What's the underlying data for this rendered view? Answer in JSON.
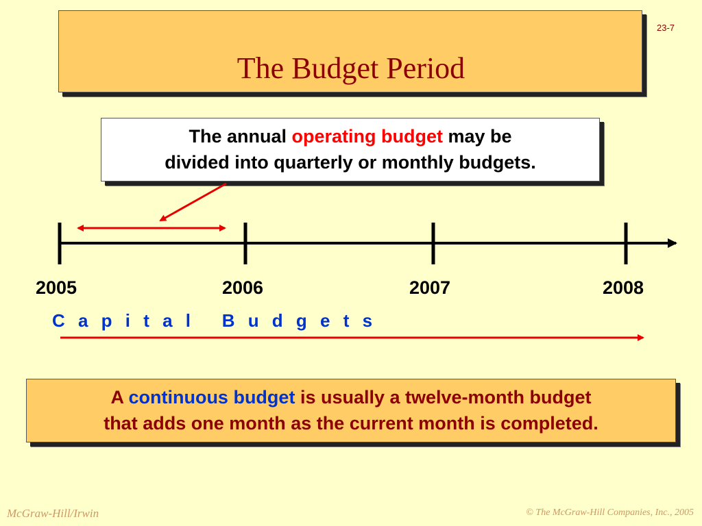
{
  "slide": {
    "number": "23-7",
    "title": "The Budget Period"
  },
  "callout": {
    "part1": "The annual ",
    "highlight": "operating budget",
    "part2": " may be",
    "line2": "divided into quarterly or monthly budgets."
  },
  "timeline": {
    "years": [
      "2005",
      "2006",
      "2007",
      "2008"
    ],
    "capital_label": "C a p i t a l   B u d g e t s"
  },
  "continuous": {
    "part1": "A ",
    "highlight": "continuous budget",
    "part2": " is usually a twelve-month budget",
    "line2": "that adds one month as the current month is completed."
  },
  "footer": {
    "left": "McGraw-Hill/Irwin",
    "right": "© The McGraw-Hill Companies, Inc., 2005"
  },
  "colors": {
    "background": "#FFFFCC",
    "title_box": "#FFCC66",
    "title_text": "#8B0000",
    "highlight_red": "#FF0000",
    "highlight_blue": "#0033CC",
    "arrow_red": "#E60000",
    "footer": "#CC9966"
  }
}
